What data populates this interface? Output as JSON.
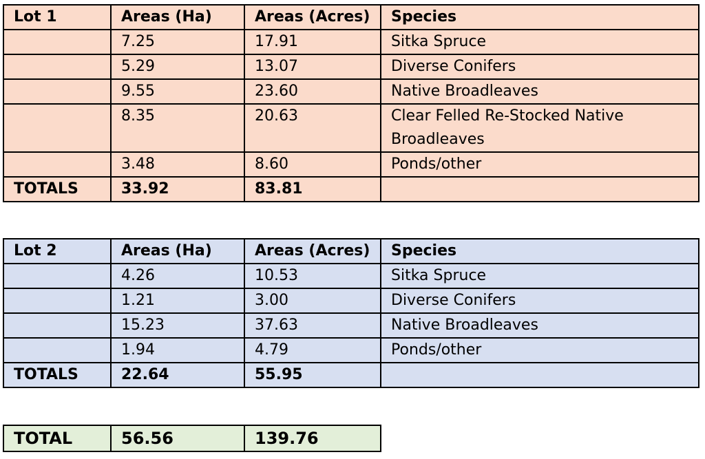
{
  "colors": {
    "lot1_background": "#FBDBCB",
    "lot2_background": "#D7DFF1",
    "total_background": "#E3EFD9"
  },
  "lot1": {
    "header": [
      "Lot 1",
      "Areas (Ha)",
      "Areas (Acres)",
      "Species"
    ],
    "rows": [
      [
        "",
        "7.25",
        "17.91",
        "Sitka Spruce"
      ],
      [
        "",
        "5.29",
        "13.07",
        "Diverse Conifers"
      ],
      [
        "",
        "9.55",
        "23.60",
        "Native Broadleaves"
      ],
      [
        "",
        "8.35",
        "20.63",
        "Clear Felled Re-Stocked Native Broadleaves"
      ],
      [
        "",
        "3.48",
        "8.60",
        "Ponds/other"
      ]
    ],
    "totals": [
      "TOTALS",
      "33.92",
      "83.81",
      ""
    ]
  },
  "lot2": {
    "header": [
      "Lot 2",
      "Areas (Ha)",
      "Areas (Acres)",
      "Species"
    ],
    "rows": [
      [
        "",
        "4.26",
        "10.53",
        "Sitka Spruce"
      ],
      [
        "",
        "1.21",
        "3.00",
        "Diverse Conifers"
      ],
      [
        "",
        "15.23",
        "37.63",
        "Native Broadleaves"
      ],
      [
        "",
        "1.94",
        "4.79",
        "Ponds/other"
      ]
    ],
    "totals": [
      "TOTALS",
      "22.64",
      "55.95",
      ""
    ]
  },
  "grand_total": [
    "TOTAL",
    "56.56",
    "139.76"
  ]
}
